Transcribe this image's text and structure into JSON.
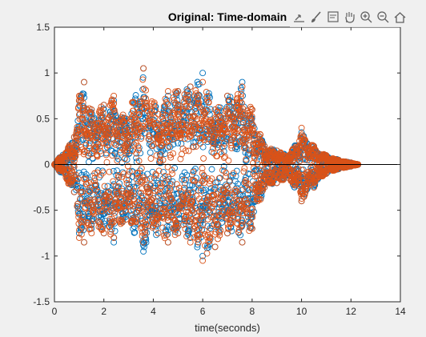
{
  "toolbar": {
    "icons": [
      "export-icon",
      "brush-icon",
      "datatip-icon",
      "pan-icon",
      "zoom-in-icon",
      "zoom-out-icon",
      "home-icon"
    ]
  },
  "chart_data": {
    "type": "scatter",
    "title": "Original: Time-domain",
    "xlabel": "time(seconds)",
    "ylabel": "",
    "xlim": [
      0,
      14
    ],
    "ylim": [
      -1.5,
      1.5
    ],
    "xticks": [
      "0",
      "2",
      "4",
      "6",
      "8",
      "10",
      "12",
      "14"
    ],
    "yticks": [
      "-1.5",
      "-1",
      "-0.5",
      "0",
      "0.5",
      "1",
      "1.5"
    ],
    "grid": false,
    "legend": "none",
    "marker": "circle-open",
    "colors": {
      "series1": "#0072BD",
      "series2": "#D95319",
      "axes": "#262626",
      "zero_line": "#000000"
    },
    "series": [
      {
        "values_approx_envelope": {
          "x": [
            0.0,
            0.8,
            1.0,
            1.2,
            1.5,
            2.0,
            2.4,
            2.9,
            3.6,
            4.2,
            4.6,
            5.0,
            5.5,
            6.0,
            6.5,
            7.0,
            7.6,
            8.0,
            8.5,
            9.0,
            9.5,
            10.0,
            10.5,
            11.0,
            11.5,
            12.0,
            12.3
          ],
          "max": [
            0.0,
            0.3,
            0.7,
            0.9,
            0.6,
            0.65,
            0.7,
            0.5,
            1.05,
            0.55,
            0.75,
            0.8,
            0.85,
            1.0,
            0.6,
            0.75,
            0.9,
            0.6,
            0.2,
            0.15,
            0.1,
            0.35,
            0.2,
            0.1,
            0.05,
            0.02,
            0.0
          ],
          "min": [
            0.0,
            -0.3,
            -0.75,
            -0.85,
            -0.7,
            -0.75,
            -0.85,
            -0.6,
            -0.95,
            -0.75,
            -0.85,
            -0.75,
            -0.8,
            -1.0,
            -0.9,
            -0.75,
            -0.85,
            -0.7,
            -0.25,
            -0.2,
            -0.15,
            -0.4,
            -0.25,
            -0.1,
            -0.05,
            -0.02,
            0.0
          ]
        }
      },
      {
        "values_approx_envelope": {
          "x": [
            0.0,
            0.8,
            1.0,
            1.2,
            1.5,
            2.0,
            2.4,
            2.9,
            3.6,
            4.2,
            4.6,
            5.0,
            5.5,
            6.0,
            6.5,
            7.0,
            7.6,
            8.0,
            8.5,
            9.0,
            9.5,
            10.0,
            10.5,
            11.0,
            11.5,
            12.0,
            12.3
          ],
          "max": [
            0.0,
            0.3,
            0.75,
            0.9,
            0.6,
            0.65,
            0.75,
            0.5,
            1.05,
            0.55,
            0.8,
            0.8,
            0.85,
            0.9,
            0.6,
            0.75,
            0.85,
            0.6,
            0.2,
            0.15,
            0.1,
            0.4,
            0.2,
            0.1,
            0.05,
            0.02,
            0.0
          ],
          "min": [
            0.0,
            -0.3,
            -0.8,
            -0.85,
            -0.75,
            -0.75,
            -0.8,
            -0.6,
            -0.85,
            -0.75,
            -0.85,
            -0.75,
            -0.85,
            -1.05,
            -0.9,
            -0.75,
            -0.85,
            -0.7,
            -0.25,
            -0.2,
            -0.15,
            -0.4,
            -0.25,
            -0.1,
            -0.05,
            -0.02,
            0.0
          ]
        }
      }
    ]
  }
}
